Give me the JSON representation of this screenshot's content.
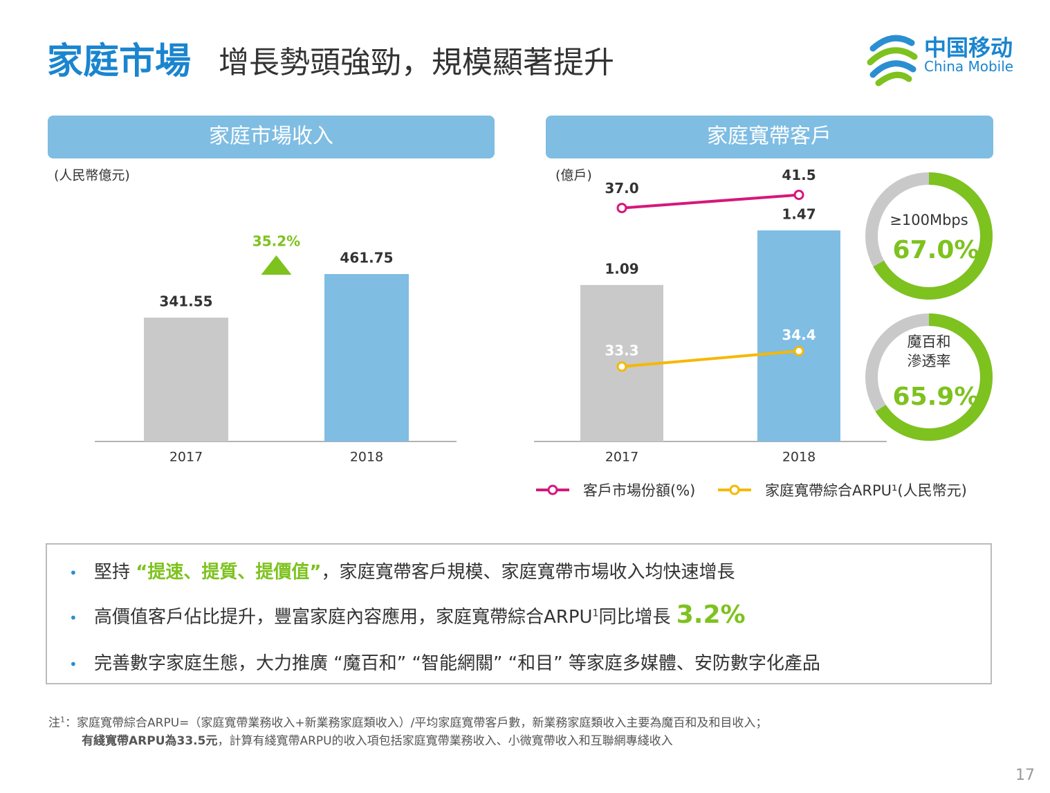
{
  "header": {
    "title_bold": "家庭市場",
    "title_rest": "增長勢頭強勁，規模顯著提升",
    "logo_cn": "中国移动",
    "logo_en": "China Mobile"
  },
  "chart_data": [
    {
      "type": "bar",
      "title": "家庭市場收入",
      "unit": "(人民幣億元)",
      "categories": [
        "2017",
        "2018"
      ],
      "values": [
        341.55,
        461.75
      ],
      "colors": [
        "#c9c9c9",
        "#7fbde3"
      ],
      "annotation": "35.2%",
      "annotation_color": "#7dc21e",
      "ylim": [
        0,
        645
      ]
    },
    {
      "type": "bar_line",
      "title": "家庭寬帶客戶",
      "unit": "(億戶)",
      "categories": [
        "2017",
        "2018"
      ],
      "values": [
        1.09,
        1.47
      ],
      "colors": [
        "#c9c9c9",
        "#7fbde3"
      ],
      "ylim": [
        0,
        1.87
      ],
      "series": [
        {
          "name": "客戶市場份額(%)",
          "color": "#d6177a",
          "values": [
            37.0,
            41.5
          ],
          "value_labels": [
            "37.0",
            "41.5"
          ],
          "label_color": "#333333",
          "ylim": [
            -43,
            49
          ]
        },
        {
          "name": "家庭寬帶綜合ARPU¹(人民幣元)",
          "color": "#f5b800",
          "values": [
            33.3,
            34.4
          ],
          "value_labels": [
            "33.3",
            "34.4"
          ],
          "label_color": "#ffffff",
          "ylim": [
            28,
            47
          ]
        }
      ]
    },
    {
      "type": "donut",
      "label": [
        "≥100Mbps"
      ],
      "value": 67.0,
      "value_label": "67.0%",
      "color": "#7dc21e",
      "rest_color": "#c9c9c9"
    },
    {
      "type": "donut",
      "label": [
        "魔百和",
        "滲透率"
      ],
      "value": 65.9,
      "value_label": "65.9%",
      "color": "#7dc21e",
      "rest_color": "#c9c9c9"
    }
  ],
  "bullets": [
    {
      "a": "堅持 ",
      "b": "“提速、提質、提價值”",
      "c": "，家庭寬帶客戶規模、家庭寬帶市場收入均快速增長"
    },
    {
      "a": "高價值客戶佔比提升，豐富家庭內容應用，家庭寬帶綜合ARPU",
      "sup": "1",
      "c": "同比增長 ",
      "b": "3.2%"
    },
    {
      "a": "完善數字家庭生態，大力推廣 “魔百和” “智能網關” “和目” 等家庭多媒體、安防數字化產品"
    }
  ],
  "footnote": {
    "lead": "注",
    "sup": "1",
    "line1": "：家庭寬帶綜合ARPU=（家庭寬帶業務收入+新業務家庭類收入）/平均家庭寬帶客戶數，新業務家庭類收入主要為魔百和及和目收入；",
    "bold": "有綫寬帶ARPU為33.5元",
    "line2": "，計算有綫寬帶ARPU的收入項包括家庭寬帶業務收入、小微寬帶收入和互聯網專綫收入"
  },
  "page_number": "17"
}
